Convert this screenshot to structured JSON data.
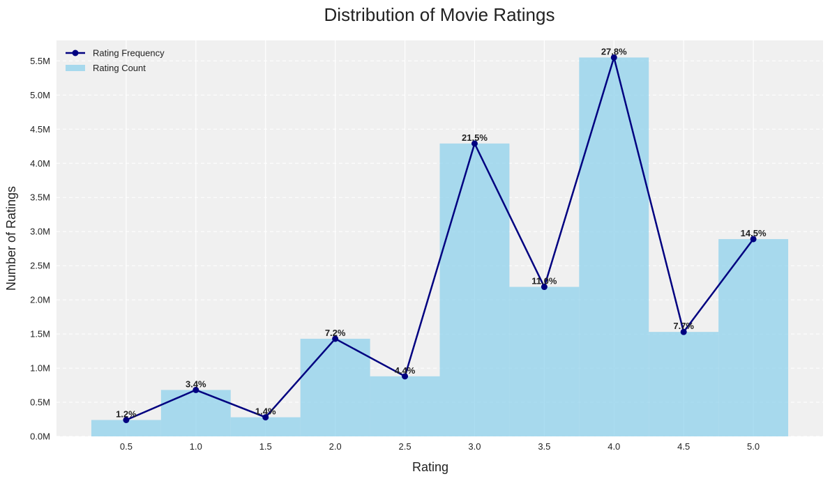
{
  "chart_data": {
    "type": "bar",
    "title": "Distribution of Movie Ratings",
    "xlabel": "Rating",
    "ylabel": "Number of Ratings",
    "categories": [
      "0.5",
      "1.0",
      "1.5",
      "2.0",
      "2.5",
      "3.0",
      "3.5",
      "4.0",
      "4.5",
      "5.0"
    ],
    "x": [
      0.5,
      1.0,
      1.5,
      2.0,
      2.5,
      3.0,
      3.5,
      4.0,
      4.5,
      5.0
    ],
    "series": [
      {
        "name": "Rating Count",
        "kind": "bar",
        "values": [
          240000,
          680000,
          280000,
          1430000,
          880000,
          4290000,
          2190000,
          5550000,
          1530000,
          2890000
        ]
      },
      {
        "name": "Rating Frequency",
        "kind": "line",
        "values": [
          240000,
          680000,
          280000,
          1430000,
          880000,
          4290000,
          2190000,
          5550000,
          1530000,
          2890000
        ]
      }
    ],
    "percent_labels": [
      "1.2%",
      "3.4%",
      "1.4%",
      "7.2%",
      "4.4%",
      "21.5%",
      "11.0%",
      "27.8%",
      "7.7%",
      "14.5%"
    ],
    "ylim": [
      0,
      5800000
    ],
    "xlim": [
      0.0,
      5.5
    ],
    "y_ticks": [
      0,
      500000,
      1000000,
      1500000,
      2000000,
      2500000,
      3000000,
      3500000,
      4000000,
      4500000,
      5000000,
      5500000
    ],
    "y_tick_labels": [
      "0.0M",
      "0.5M",
      "1.0M",
      "1.5M",
      "2.0M",
      "2.5M",
      "3.0M",
      "3.5M",
      "4.0M",
      "4.5M",
      "5.0M",
      "5.5M"
    ],
    "bar_width": 0.5,
    "grid": true,
    "legend_position": "top-left",
    "colors": {
      "bar": "#87ceeb",
      "line": "#000080",
      "plot_background": "#f0f0f0",
      "grid": "#ffffff"
    }
  }
}
